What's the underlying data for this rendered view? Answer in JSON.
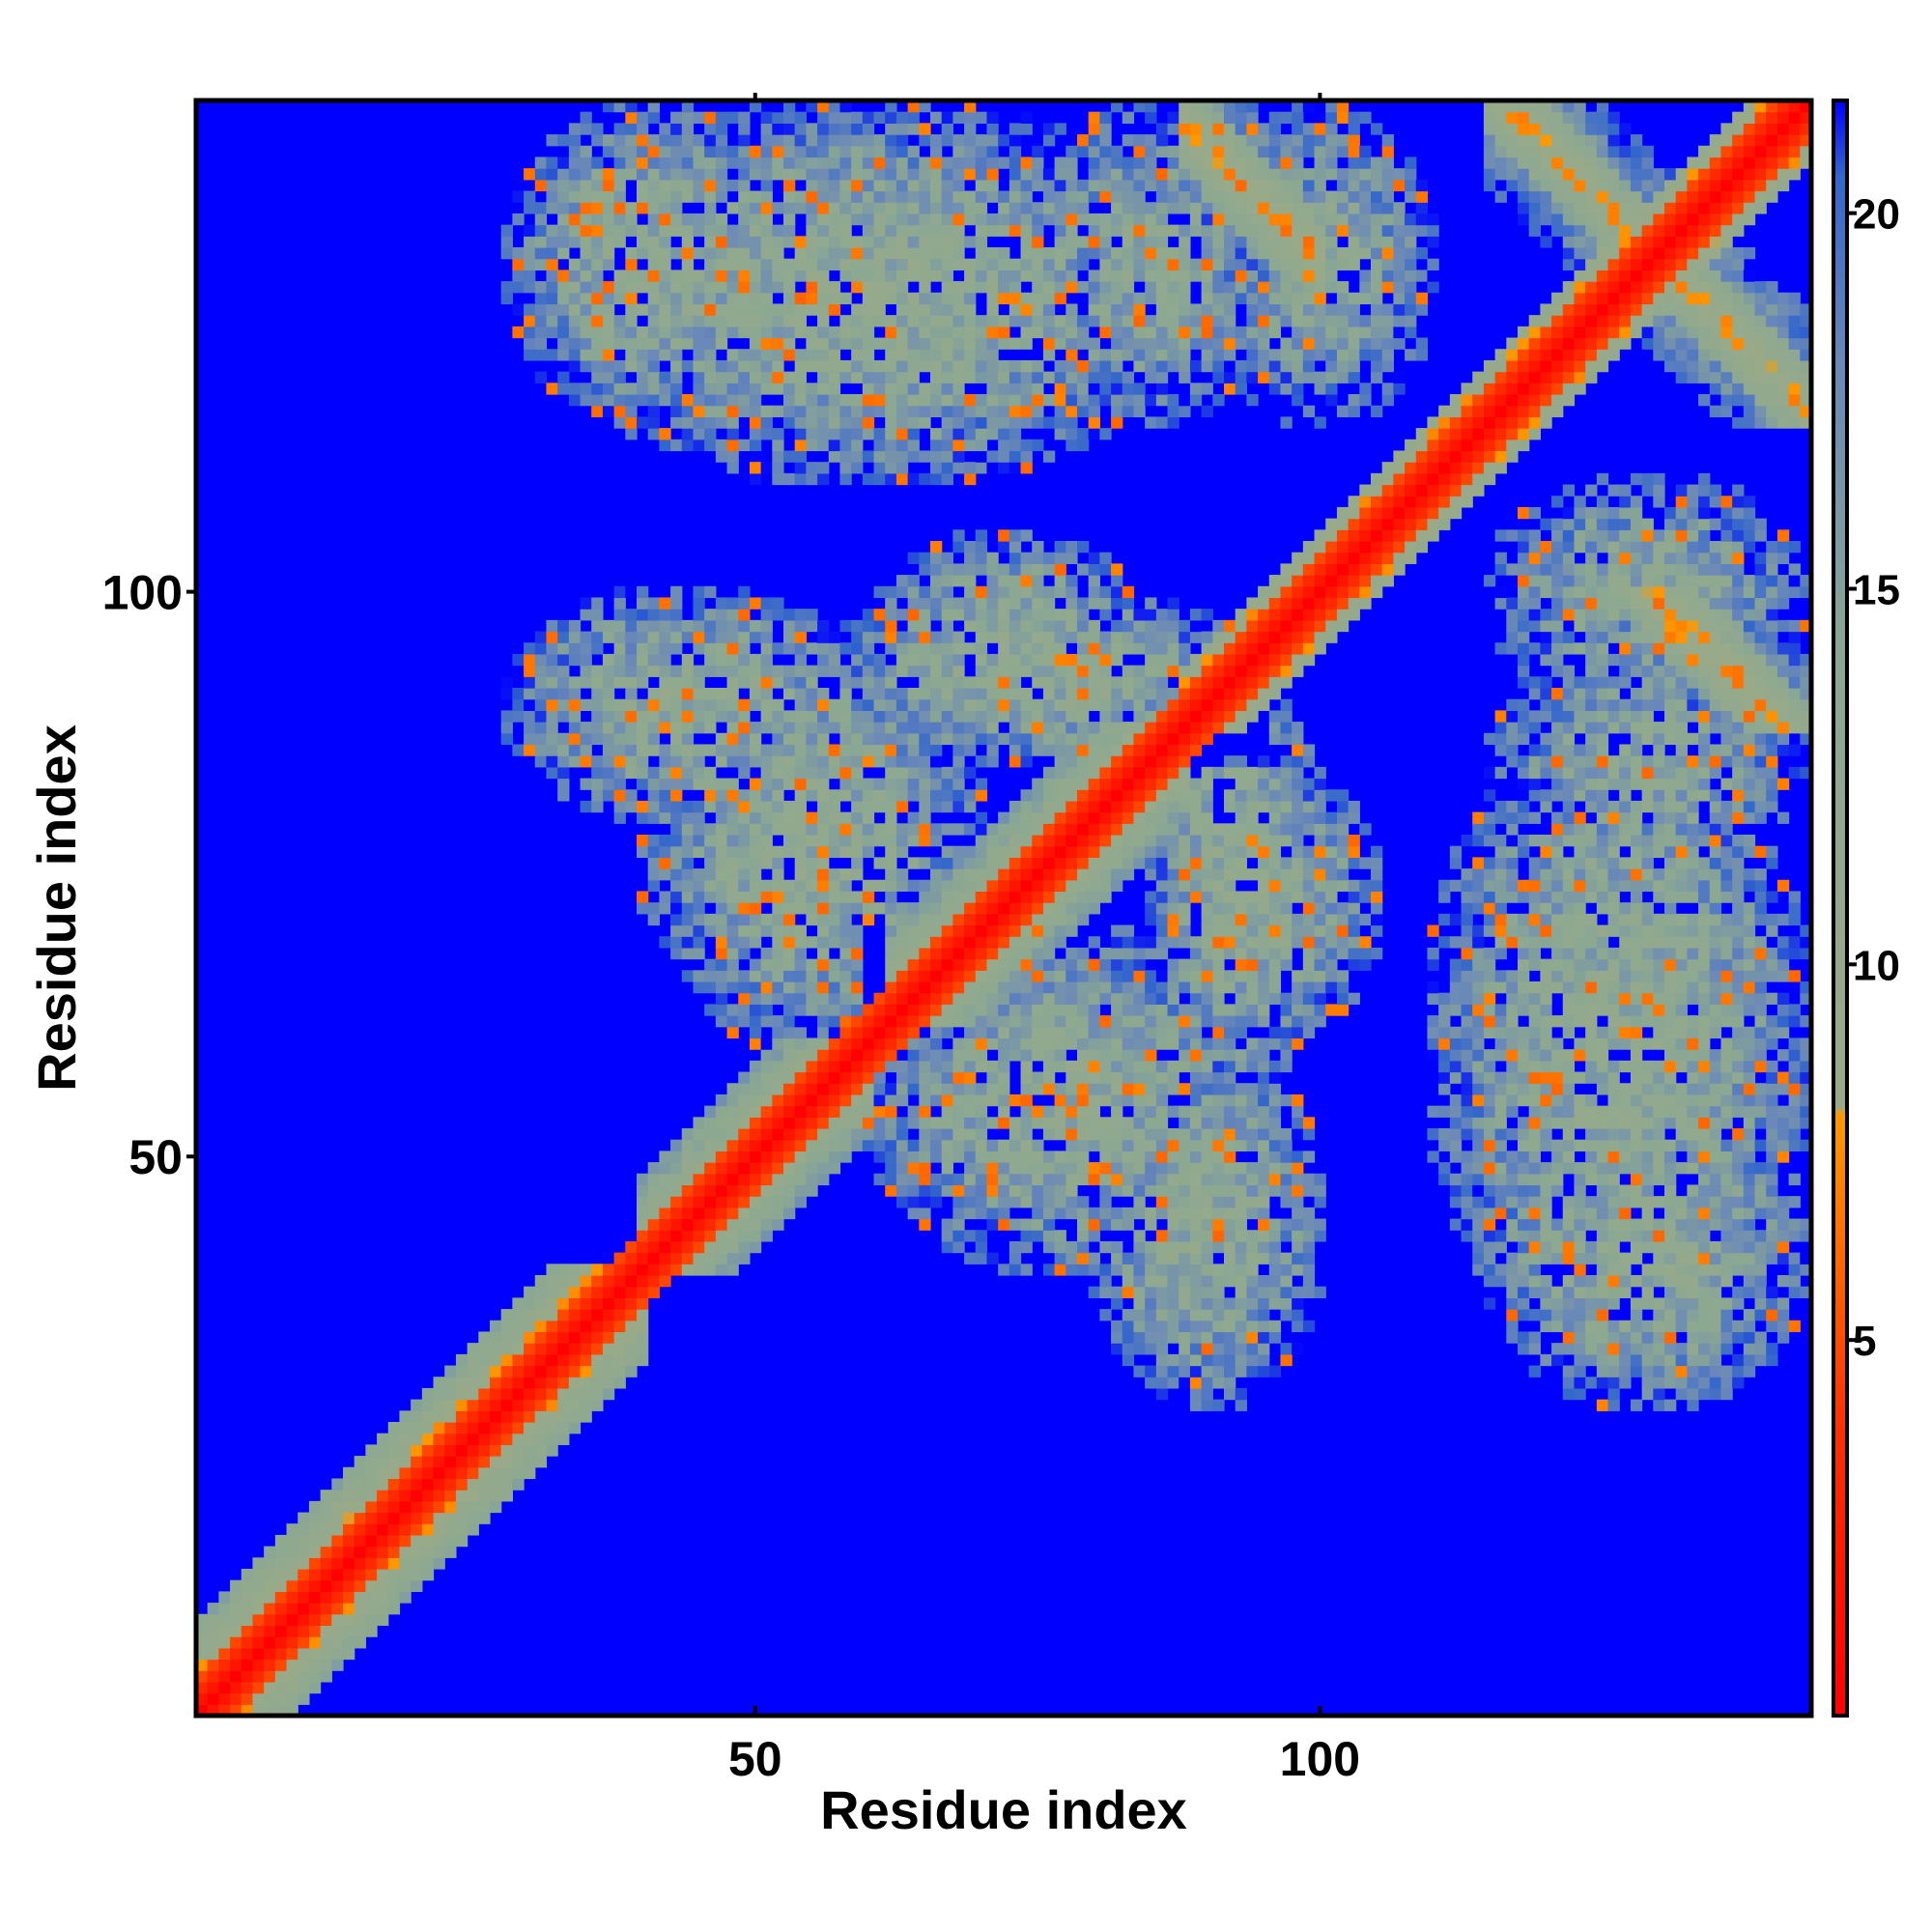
{
  "chart_data": {
    "type": "heatmap",
    "title": "",
    "xlabel": "Residue index",
    "ylabel": "Residue index",
    "xlim": [
      1,
      143
    ],
    "ylim": [
      1,
      143
    ],
    "x_ticks": [
      50,
      100
    ],
    "y_ticks": [
      50,
      100
    ],
    "colorbar": {
      "range": [
        0,
        21.5
      ],
      "ticks": [
        5,
        10,
        15,
        20
      ],
      "stops": [
        {
          "value": 0,
          "color": "#ff0000"
        },
        {
          "value": 4,
          "color": "#ff3300"
        },
        {
          "value": 8,
          "color": "#ff9900"
        },
        {
          "value": 8.1,
          "color": "#9aaa88"
        },
        {
          "value": 14,
          "color": "#8ca892"
        },
        {
          "value": 18,
          "color": "#6a88b8"
        },
        {
          "value": 20.5,
          "color": "#3366cc"
        },
        {
          "value": 21.5,
          "color": "#0000ff"
        }
      ]
    },
    "background_color": "#0000ff",
    "diagonal_band": {
      "center_value": 0,
      "half_width": 3,
      "description": "red main diagonal"
    },
    "contact_regions": [
      {
        "x": [
          1,
          40
        ],
        "y": [
          1,
          40
        ],
        "kind": "diagonal-helix",
        "min": 2
      },
      {
        "x": [
          40,
          60
        ],
        "y": [
          40,
          60
        ],
        "kind": "diagonal-helix",
        "min": 4
      },
      {
        "x": [
          62,
          88
        ],
        "y": [
          62,
          88
        ],
        "kind": "diagonal-helix",
        "min": 4
      },
      {
        "x": [
          88,
          143
        ],
        "y": [
          88,
          143
        ],
        "kind": "diagonal",
        "min": 2
      },
      {
        "x": [
          90,
          100
        ],
        "y": [
          125,
          143
        ],
        "kind": "antiparallel",
        "min": 6
      },
      {
        "x": [
          118,
          143
        ],
        "y": [
          115,
          143
        ],
        "kind": "antiparallel",
        "min": 6
      },
      {
        "x": [
          128,
          143
        ],
        "y": [
          88,
          100
        ],
        "kind": "antiparallel",
        "min": 6
      },
      {
        "x": [
          28,
          55
        ],
        "y": [
          115,
          143
        ],
        "kind": "patch",
        "min": 9
      },
      {
        "x": [
          28,
          60
        ],
        "y": [
          80,
          100
        ],
        "kind": "patch",
        "min": 9
      },
      {
        "x": [
          55,
          95
        ],
        "y": [
          85,
          100
        ],
        "kind": "patch",
        "min": 9
      },
      {
        "x": [
          60,
          95
        ],
        "y": [
          40,
          70
        ],
        "kind": "patch",
        "min": 9
      },
      {
        "x": [
          85,
          105
        ],
        "y": [
          60,
          85
        ],
        "kind": "patch",
        "min": 9
      },
      {
        "x": [
          110,
          143
        ],
        "y": [
          30,
          90
        ],
        "kind": "patch",
        "min": 9
      },
      {
        "x": [
          90,
          110
        ],
        "y": [
          115,
          143
        ],
        "kind": "patch",
        "min": 10
      },
      {
        "x": [
          75,
          95
        ],
        "y": [
          115,
          143
        ],
        "kind": "patch",
        "min": 10
      }
    ]
  }
}
